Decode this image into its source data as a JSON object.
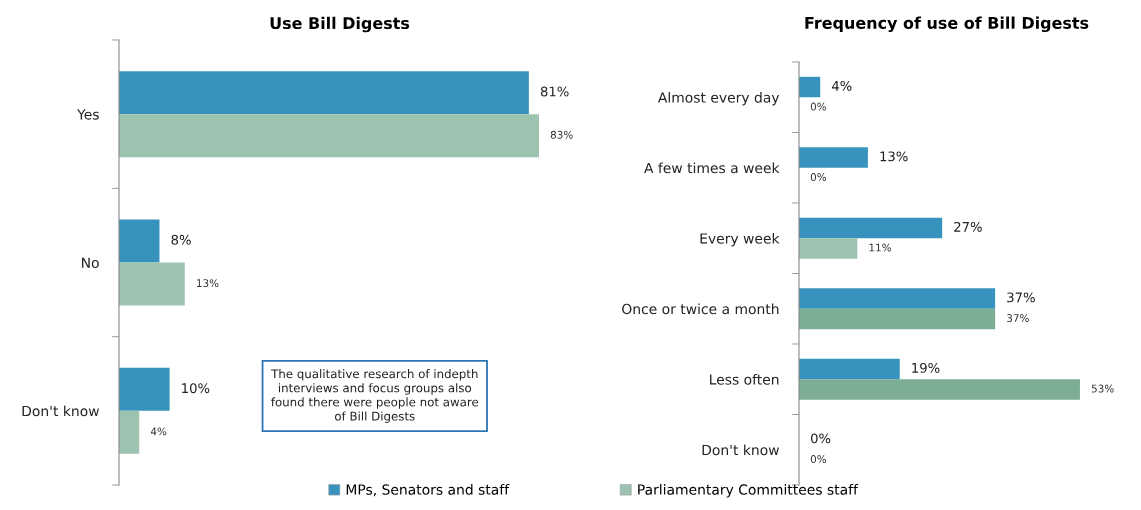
{
  "chart_data": [
    {
      "type": "bar",
      "orientation": "horizontal",
      "title": "Use Bill Digests",
      "categories": [
        "Yes",
        "No",
        "Don't know"
      ],
      "legend": "bottom",
      "series": [
        {
          "name": "MPs, Senators and staff",
          "color": "#3793bd",
          "values": [
            81,
            8,
            10
          ],
          "value_labels": [
            "81%",
            "8%",
            "10%"
          ]
        },
        {
          "name": "Parliamentary Committees staff",
          "color": "#9cc3b0",
          "values": [
            83,
            13,
            4
          ],
          "value_labels": [
            "83%",
            "13%",
            "4%"
          ]
        }
      ],
      "annotations": [
        "The qualitative research of indepth\ninterviews and focus groups also\nfound there were people not aware\nof Bill Digests"
      ]
    },
    {
      "type": "bar",
      "orientation": "horizontal",
      "title": "Frequency of use of Bill Digests",
      "categories": [
        "Almost every day",
        "A few times a week",
        "Every week",
        "Once or twice a month",
        "Less often",
        "Don't know"
      ],
      "legend": "bottom",
      "series": [
        {
          "name": "MPs, Senators and staff",
          "color": "#3793bd",
          "values": [
            4,
            13,
            27,
            37,
            19,
            0
          ],
          "value_labels": [
            "4%",
            "13%",
            "27%",
            "37%",
            "19%",
            "0%"
          ]
        },
        {
          "name": "Parliamentary Committees staff",
          "color": "#9cc3b0",
          "colors": [
            "#9cc3b0",
            "#9cc3b0",
            "#9cc3b0",
            "#7bae94",
            "#7bae94",
            "#9cc3b0"
          ],
          "values": [
            0,
            0,
            11,
            37,
            53,
            0
          ],
          "value_labels": [
            "0%",
            "0%",
            "11%",
            "37%",
            "53%",
            "0%"
          ]
        }
      ]
    }
  ]
}
